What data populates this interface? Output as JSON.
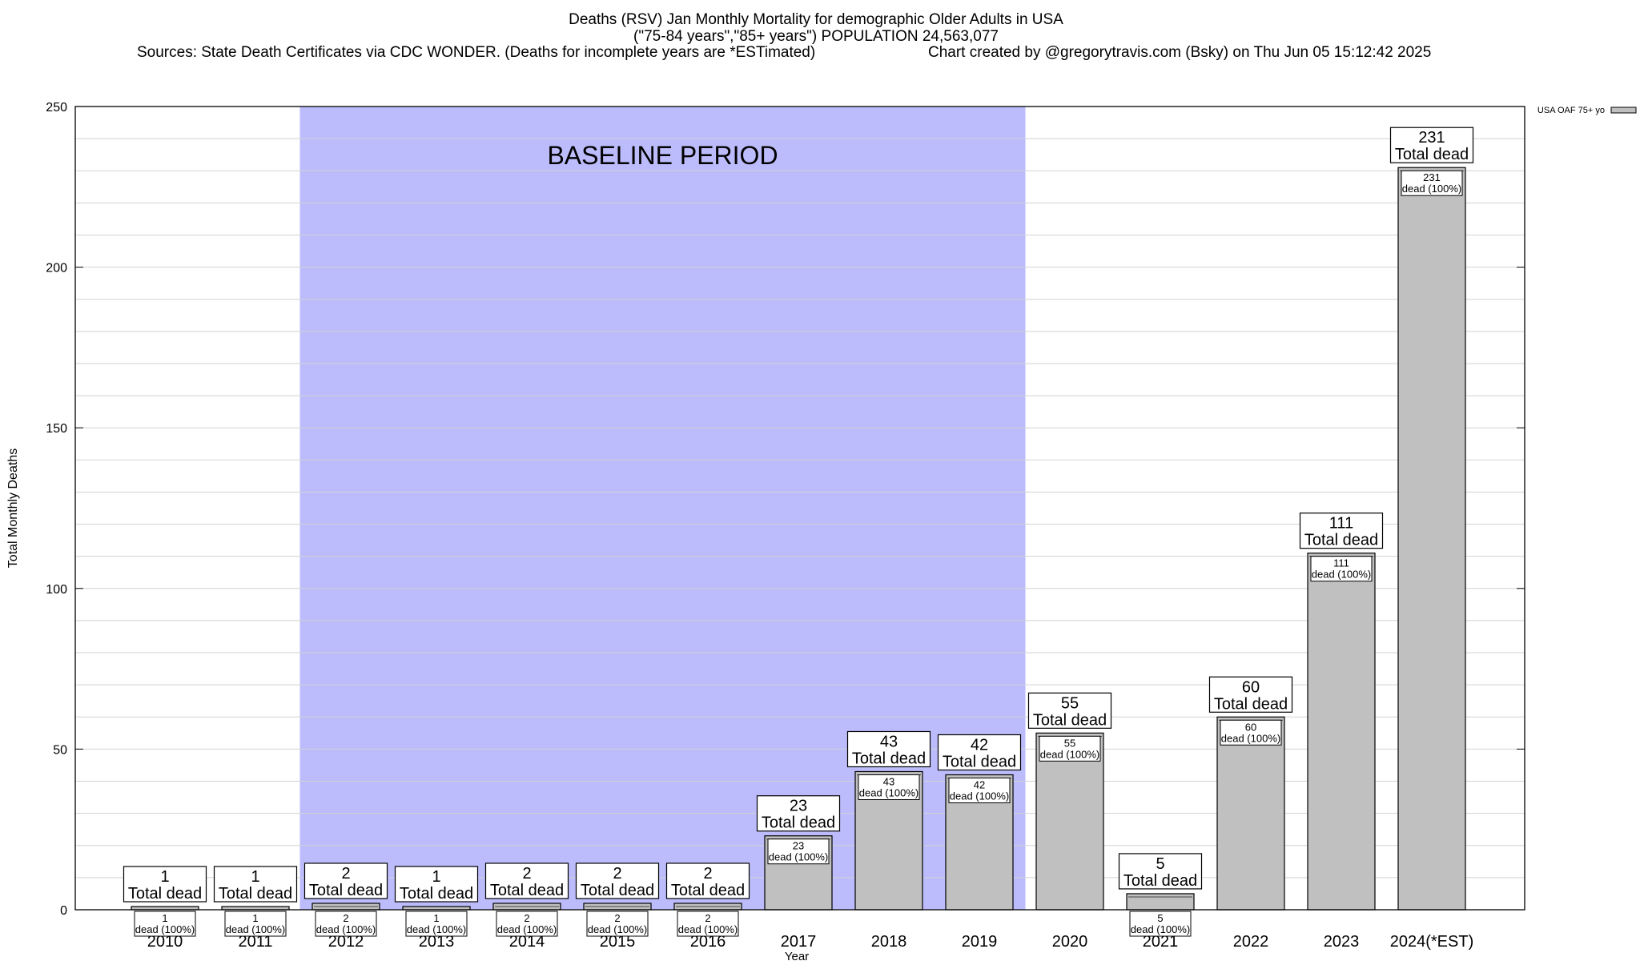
{
  "chart_data": {
    "type": "bar",
    "title": "Deaths (RSV) Jan Monthly Mortality for demographic Older Adults in USA",
    "subtitle": "(\"75-84 years\",\"85+ years\") POPULATION 24,563,077",
    "sources": "Sources: State Death Certificates via CDC WONDER. (Deaths for incomplete years are *ESTimated)",
    "credit": "Chart created by @gregorytravis.com (Bsky) on Thu Jun 05 15:12:42 2025",
    "xlabel": "Year",
    "ylabel": "Total Monthly Deaths",
    "ylim": [
      0,
      250
    ],
    "yticks": [
      0,
      50,
      100,
      150,
      200,
      250
    ],
    "grid": true,
    "legend": {
      "position": "top-right",
      "entries": [
        "USA OAF 75+ yo"
      ]
    },
    "categories": [
      "2010",
      "2011",
      "2012",
      "2013",
      "2014",
      "2015",
      "2016",
      "2017",
      "2018",
      "2019",
      "2020",
      "2021",
      "2022",
      "2023",
      "2024(*EST)"
    ],
    "series": [
      {
        "name": "USA OAF 75+ yo",
        "values": [
          1,
          1,
          2,
          1,
          2,
          2,
          2,
          23,
          43,
          42,
          55,
          5,
          60,
          111,
          231
        ],
        "color": "#c0c0c0"
      }
    ],
    "total_label": "Total dead",
    "inner_label": "dead (100%)",
    "baseline": {
      "label": "BASELINE PERIOD",
      "start": "2012",
      "end": "2019",
      "color": "#bcbcfc"
    }
  }
}
